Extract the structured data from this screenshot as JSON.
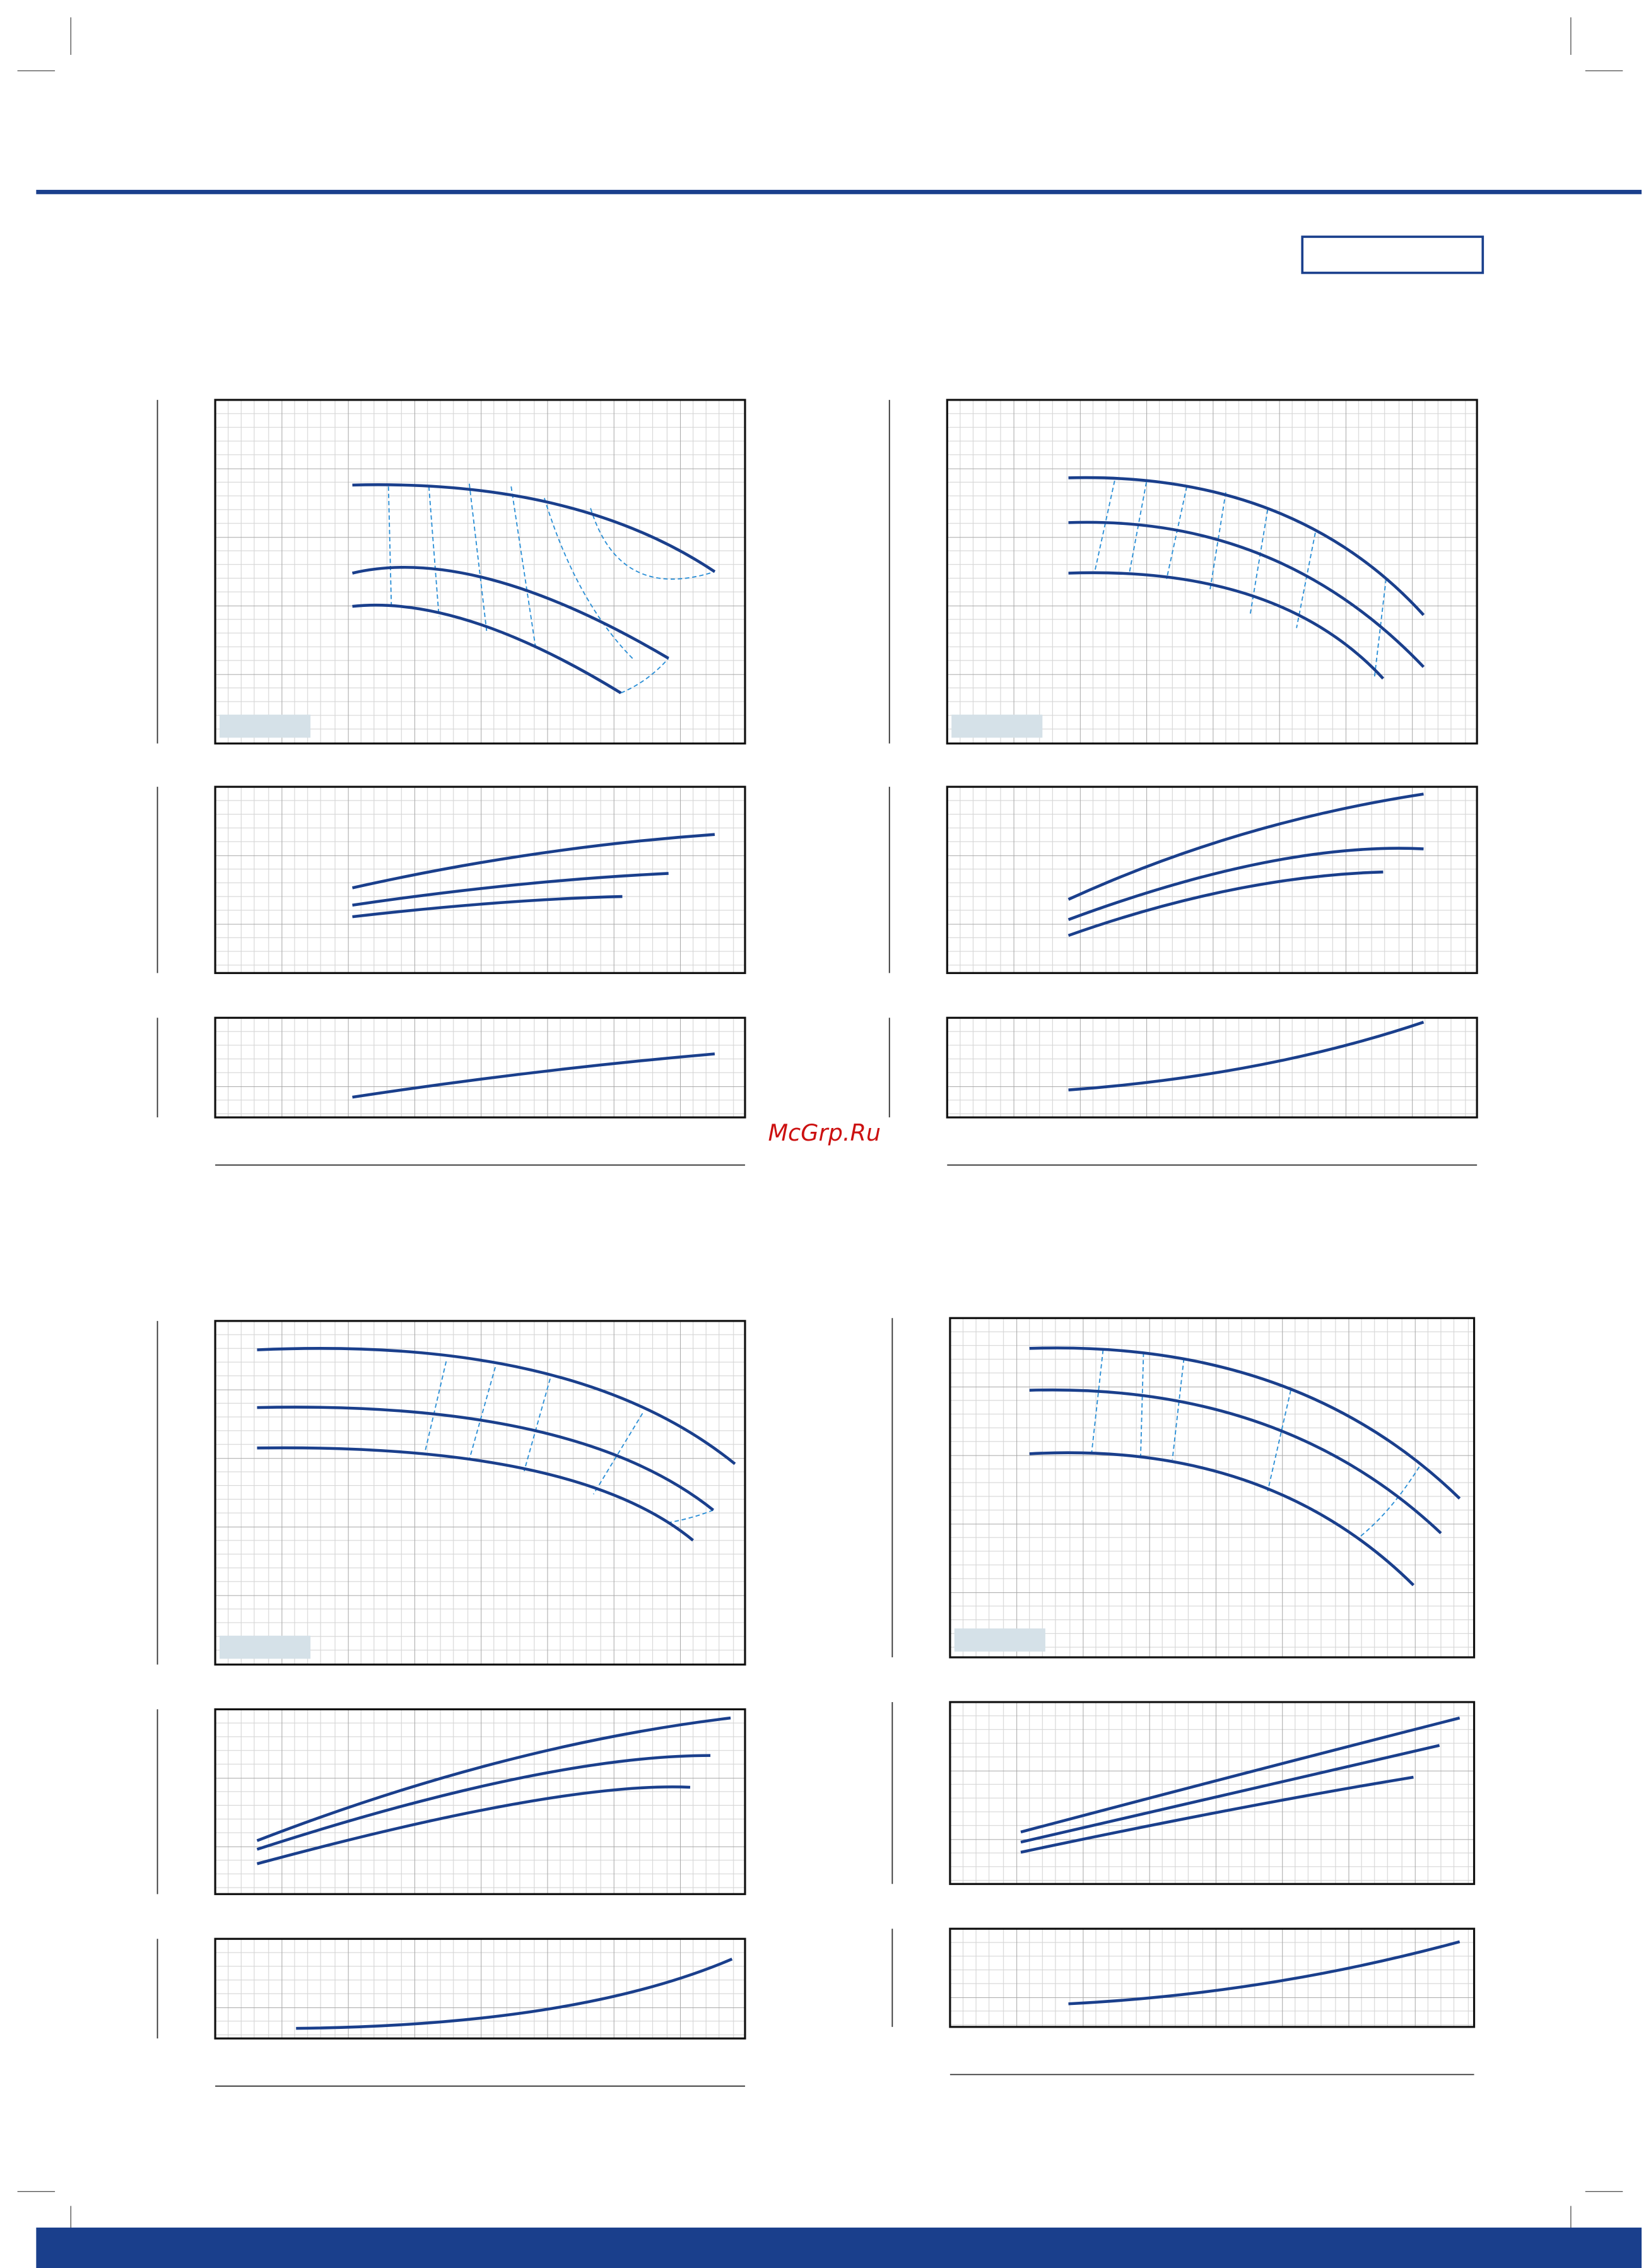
{
  "watermark": "McGrp.Ru"
}
